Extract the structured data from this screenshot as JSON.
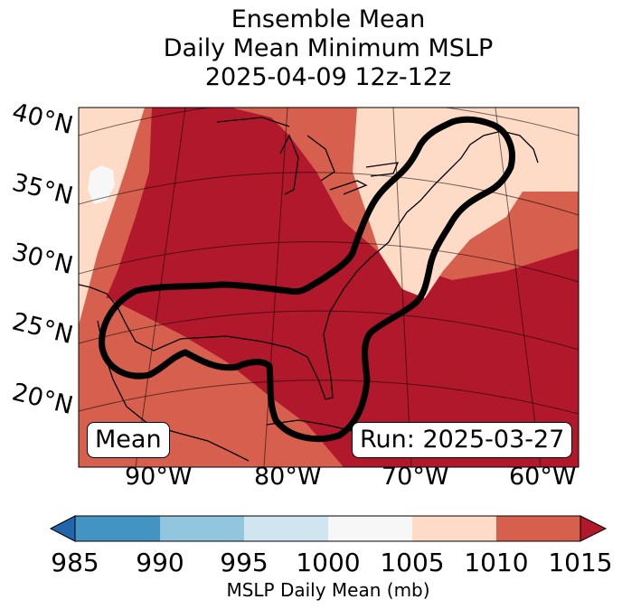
{
  "title": {
    "line1": "Ensemble Mean",
    "line2": "Daily Mean Minimum MSLP",
    "line3": "2025-04-09 12z-12z"
  },
  "map": {
    "lat_labels": [
      "40°N",
      "35°N",
      "30°N",
      "25°N",
      "20°N"
    ],
    "lon_labels": [
      "90°W",
      "80°W",
      "70°W",
      "60°W"
    ],
    "mean_label": "Mean",
    "run_label": "Run: 2025-03-27",
    "contour_color": "#000000",
    "fill_colors": {
      "1000-1005": "#f7f7f7",
      "1005-1010": "#fddbc7",
      "1010-1015": "#d6604d",
      ">1015": "#b2182b"
    }
  },
  "colorbar": {
    "ticks": [
      "985",
      "990",
      "995",
      "1000",
      "1005",
      "1010",
      "1015"
    ],
    "label": "MSLP Daily Mean (mb)",
    "colors": [
      "#4393c3",
      "#92c5de",
      "#d1e5f0",
      "#f7f7f7",
      "#fddbc7",
      "#d6604d"
    ],
    "under_color": "#2166ac",
    "over_color": "#b2182b"
  }
}
